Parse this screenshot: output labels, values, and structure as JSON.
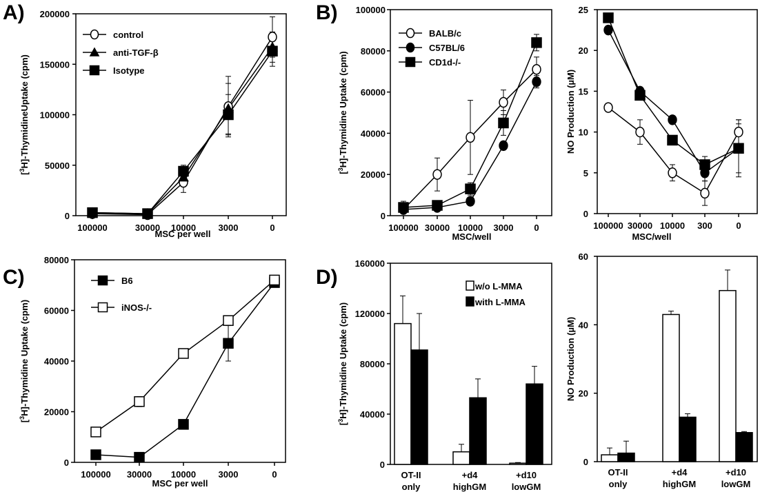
{
  "panel_letters": {
    "A": "A)",
    "B": "B)",
    "C": "C)",
    "D": "D)"
  },
  "chart_data": [
    {
      "id": "A",
      "type": "line",
      "xlabel": "MSC per well",
      "ylabel_sup": "3",
      "ylabel_pre": "[",
      "ylabel_post": "H]-ThymidineUptake (cpm)",
      "categories": [
        "100000",
        "30000",
        "10000",
        "3000",
        "0"
      ],
      "ylim": [
        0,
        200000
      ],
      "yticks": [
        "0",
        "50000",
        "100000",
        "150000",
        "200000"
      ],
      "legend_position": "top-left",
      "series": [
        {
          "name": "control",
          "marker": "circle-open",
          "values": [
            2000,
            1000,
            33000,
            108000,
            177000
          ],
          "err": [
            1000,
            1000,
            10000,
            30000,
            20000
          ]
        },
        {
          "name": "anti-TGF-β",
          "marker": "triangle",
          "values": [
            3000,
            2000,
            38000,
            106000,
            167000
          ],
          "err": [
            1000,
            1000,
            8000,
            25000,
            15000
          ]
        },
        {
          "name": "Isotype",
          "marker": "square",
          "values": [
            3000,
            2000,
            44000,
            100000,
            163000
          ],
          "err": [
            1000,
            1000,
            6000,
            20000,
            15000
          ]
        }
      ]
    },
    {
      "id": "B1",
      "type": "line",
      "xlabel": "MSC/well",
      "ylabel_sup": "3",
      "ylabel_pre": "[",
      "ylabel_post": "H]-Thymidine Uptake (cpm)",
      "categories": [
        "100000",
        "30000",
        "10000",
        "3000",
        "0"
      ],
      "ylim": [
        0,
        100000
      ],
      "yticks": [
        "0",
        "20000",
        "40000",
        "60000",
        "80000",
        "100000"
      ],
      "legend_position": "top-left",
      "series": [
        {
          "name": "BALB/c",
          "marker": "circle-open",
          "values": [
            3000,
            20000,
            38000,
            55000,
            71000
          ],
          "err": [
            2000,
            8000,
            18000,
            6000,
            6000
          ]
        },
        {
          "name": "C57BL/6",
          "marker": "circle",
          "values": [
            3000,
            4000,
            7000,
            34000,
            65000
          ],
          "err": [
            1000,
            1000,
            2000,
            2000,
            3000
          ]
        },
        {
          "name": "CD1d-/-",
          "marker": "square",
          "values": [
            4000,
            5000,
            13000,
            45000,
            84000
          ],
          "err": [
            3000,
            1000,
            3000,
            6000,
            4000
          ]
        }
      ]
    },
    {
      "id": "B2",
      "type": "line",
      "xlabel": "MSC/well",
      "ylabel": "NO Production (µM)",
      "categories": [
        "100000",
        "30000",
        "10000",
        "300",
        "0"
      ],
      "ylim": [
        0,
        25
      ],
      "yticks": [
        "0",
        "5",
        "10",
        "15",
        "20",
        "25"
      ],
      "series": [
        {
          "name": "",
          "marker": "circle-open",
          "values": [
            13,
            10,
            5,
            2.5,
            10
          ],
          "err": [
            0.5,
            1.5,
            1,
            1.5,
            1.5
          ]
        },
        {
          "name": "",
          "marker": "circle",
          "values": [
            22.5,
            15,
            11.5,
            5,
            8
          ],
          "err": [
            0.5,
            0.5,
            0.5,
            1,
            3.5
          ]
        },
        {
          "name": "",
          "marker": "square",
          "values": [
            24,
            14.5,
            9,
            6,
            8
          ],
          "err": [
            0.5,
            0.5,
            0.5,
            1,
            3
          ]
        }
      ]
    },
    {
      "id": "C",
      "type": "line",
      "xlabel": "MSC per well",
      "ylabel_sup": "3",
      "ylabel_pre": "[",
      "ylabel_post": "H]-Thymidine Uptake (cpm)",
      "categories": [
        "100000",
        "30000",
        "10000",
        "3000",
        "0"
      ],
      "ylim": [
        0,
        80000
      ],
      "yticks": [
        "0",
        "20000",
        "40000",
        "60000",
        "80000"
      ],
      "legend_position": "top-left",
      "series": [
        {
          "name": "B6",
          "marker": "square",
          "values": [
            3000,
            2000,
            15000,
            47000,
            71000
          ],
          "err": [
            1000,
            500,
            1000,
            7000,
            1000
          ]
        },
        {
          "name": "iNOS-/-",
          "marker": "square-open",
          "values": [
            12000,
            24000,
            43000,
            56000,
            72000
          ],
          "err": [
            1000,
            2000,
            1000,
            1000,
            1000
          ]
        }
      ]
    },
    {
      "id": "D1",
      "type": "bar",
      "ylabel_sup": "3",
      "ylabel_pre": "[",
      "ylabel_post": "H]-Thymidine Uptake (cpm)",
      "categories": [
        [
          "OT-II",
          "only"
        ],
        [
          "+d4",
          "highGM"
        ],
        [
          "+d10",
          "lowGM"
        ]
      ],
      "ylim": [
        0,
        160000
      ],
      "yticks": [
        "0",
        "40000",
        "80000",
        "120000",
        "160000"
      ],
      "legend_position": "top-right",
      "series": [
        {
          "name": "w/o L-MMA",
          "color": "#ffffff",
          "values": [
            112000,
            10000,
            1000
          ],
          "err": [
            22000,
            6000,
            500
          ]
        },
        {
          "name": "with L-MMA",
          "color": "#000000",
          "values": [
            91000,
            53000,
            64000
          ],
          "err": [
            29000,
            15000,
            14000
          ]
        }
      ]
    },
    {
      "id": "D2",
      "type": "bar",
      "ylabel": "NO Production (µM)",
      "categories": [
        [
          "OT-II",
          "only"
        ],
        [
          "+d4",
          "highGM"
        ],
        [
          "+d10",
          "lowGM"
        ]
      ],
      "ylim": [
        0,
        60
      ],
      "yticks": [
        "0",
        "20",
        "40",
        "60"
      ],
      "series": [
        {
          "name": "w/o L-MMA",
          "color": "#ffffff",
          "values": [
            2,
            43,
            50
          ],
          "err": [
            2,
            1,
            6
          ]
        },
        {
          "name": "with L-MMA",
          "color": "#000000",
          "values": [
            2.5,
            13,
            8.5
          ],
          "err": [
            3.5,
            1,
            0.3
          ]
        }
      ]
    }
  ]
}
